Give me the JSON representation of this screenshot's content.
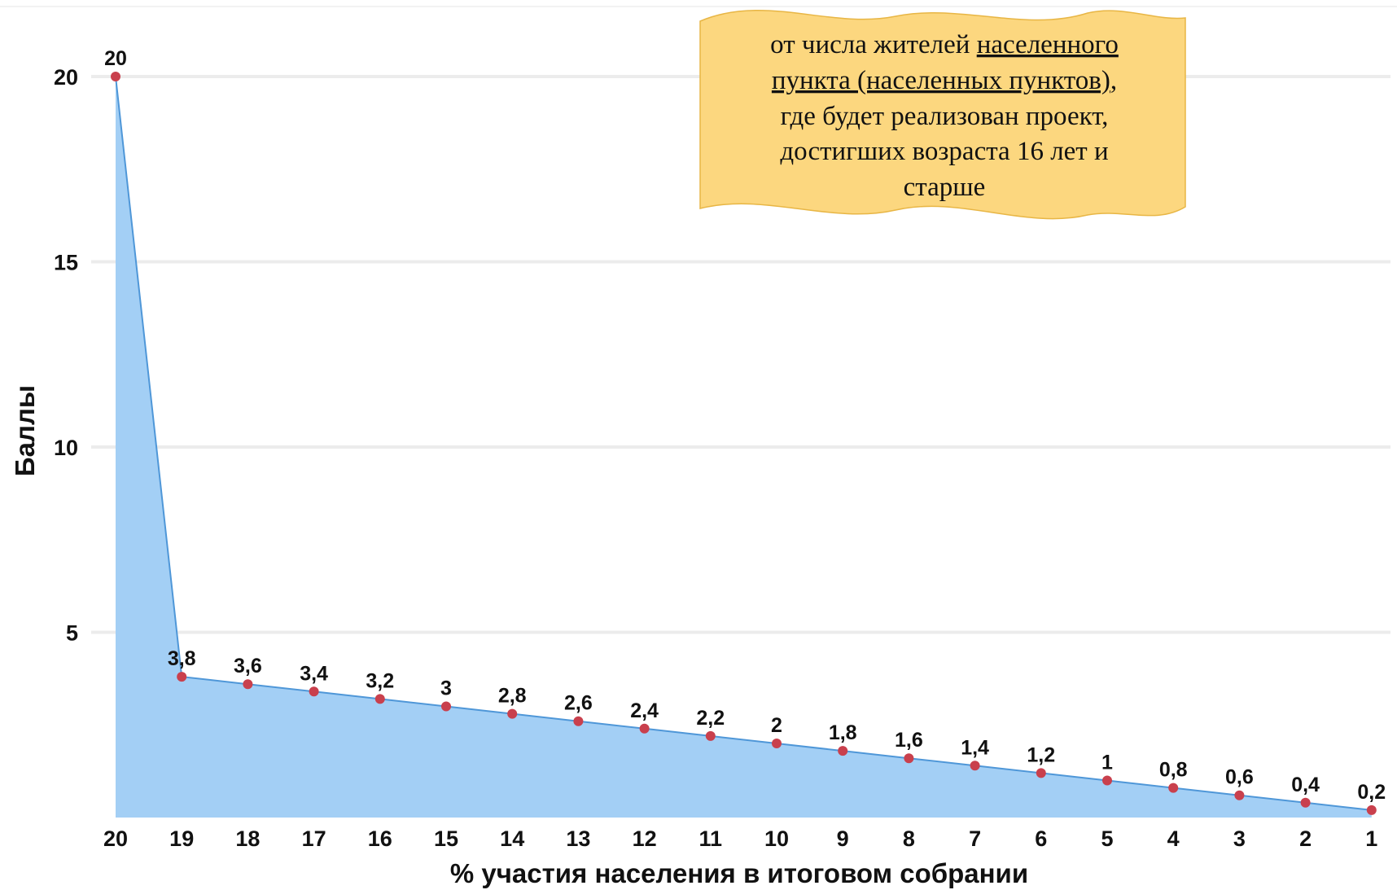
{
  "chart_data": {
    "type": "area",
    "title": "",
    "xlabel": "% участия населения в итоговом собрании",
    "ylabel": "Баллы",
    "x": [
      "20",
      "19",
      "18",
      "17",
      "16",
      "15",
      "14",
      "13",
      "12",
      "11",
      "10",
      "9",
      "8",
      "7",
      "6",
      "5",
      "4",
      "3",
      "2",
      "1"
    ],
    "values": [
      20,
      3.8,
      3.6,
      3.4,
      3.2,
      3,
      2.8,
      2.6,
      2.4,
      2.2,
      2,
      1.8,
      1.6,
      1.4,
      1.2,
      1,
      0.8,
      0.6,
      0.4,
      0.2
    ],
    "data_labels": [
      "20",
      "3,8",
      "3,6",
      "3,4",
      "3,2",
      "3",
      "2,8",
      "2,6",
      "2,4",
      "2,2",
      "2",
      "1,8",
      "1,6",
      "1,4",
      "1,2",
      "1",
      "0,8",
      "0,6",
      "0,4",
      "0,2"
    ],
    "y_ticks": [
      5,
      10,
      15,
      20
    ],
    "ylim": [
      0,
      20
    ],
    "grid": true,
    "colors": {
      "area_fill": "#a3cff5",
      "line": "#4f97d8",
      "marker": "#c9404d",
      "grid": "#ececec",
      "note_fill": "#fcd77f",
      "note_stroke": "#e8b645"
    },
    "annotation": {
      "line1": "от числа жителей ",
      "line1_underlined": "населенного",
      "line2_underlined": "пункта (населенных пунктов)",
      "line2_rest": ",",
      "line3": "где будет реализован проект,",
      "line4": "достигших возраста 16 лет и",
      "line5": "старше"
    }
  }
}
